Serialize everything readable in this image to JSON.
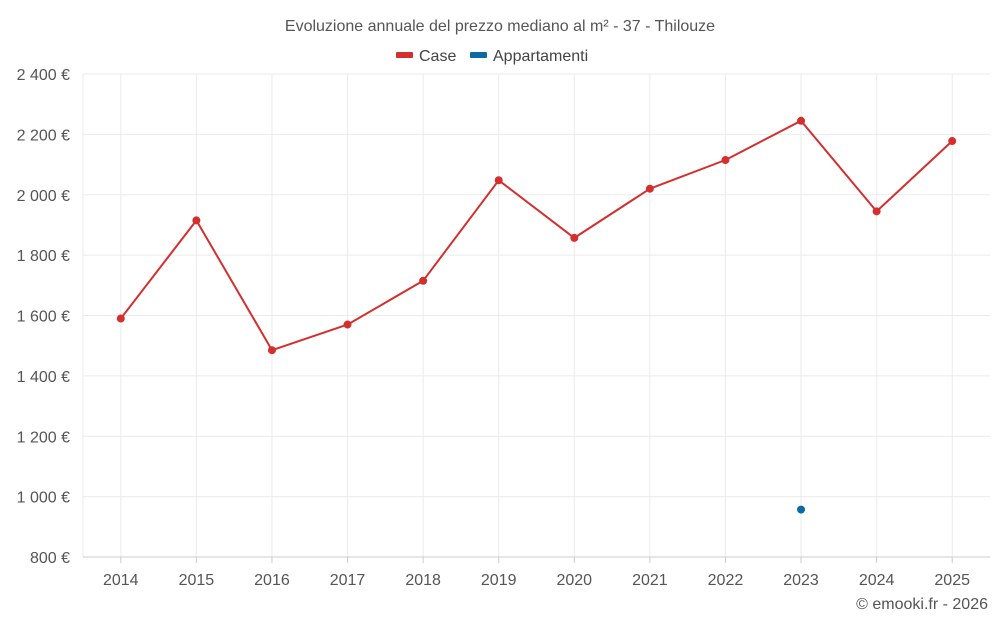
{
  "chart_data": {
    "type": "line",
    "title": "Evoluzione annuale del prezzo mediano al m² - 37 - Thilouze",
    "xlabel": "",
    "ylabel": "",
    "categories": [
      "2014",
      "2015",
      "2016",
      "2017",
      "2018",
      "2019",
      "2020",
      "2021",
      "2022",
      "2023",
      "2024",
      "2025"
    ],
    "ylim": [
      800,
      2400
    ],
    "yticks": [
      800,
      1000,
      1200,
      1400,
      1600,
      1800,
      2000,
      2200,
      2400
    ],
    "ytick_labels": [
      "800 €",
      "1 000 €",
      "1 200 €",
      "1 400 €",
      "1 600 €",
      "1 800 €",
      "2 000 €",
      "2 200 €",
      "2 400 €"
    ],
    "grid": true,
    "legend_position": "top-center",
    "series": [
      {
        "name": "Case",
        "color": "#d32f2f",
        "values": [
          1590,
          1915,
          1485,
          1570,
          1715,
          2048,
          1857,
          2020,
          2115,
          2245,
          1945,
          2178
        ]
      },
      {
        "name": "Appartamenti",
        "color": "#0b6aa2",
        "values": [
          null,
          null,
          null,
          null,
          null,
          null,
          null,
          null,
          null,
          957,
          null,
          null
        ]
      }
    ],
    "credit": "© emooki.fr - 2026"
  }
}
